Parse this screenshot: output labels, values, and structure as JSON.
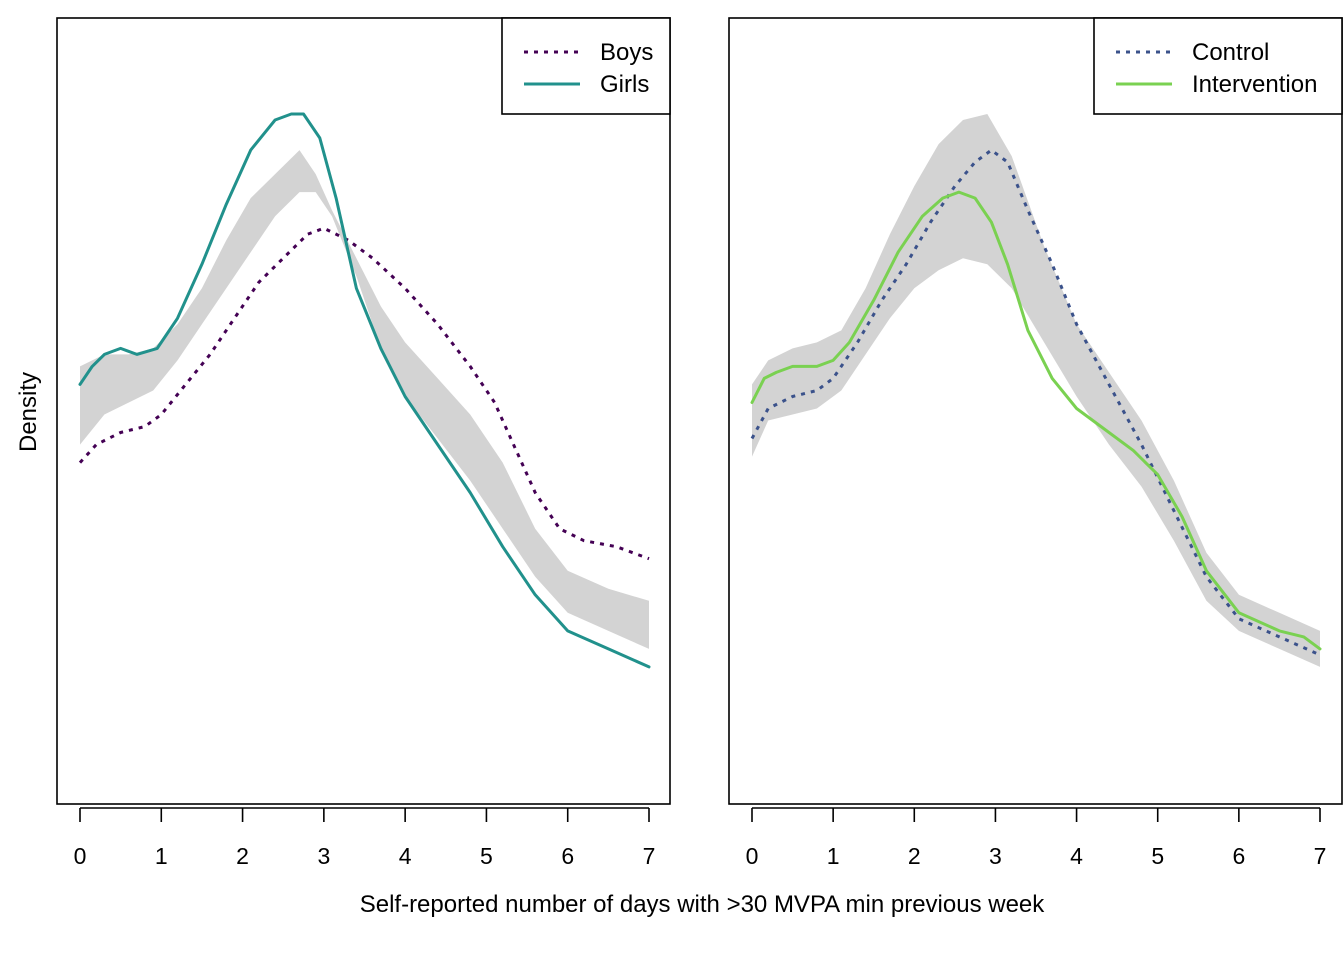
{
  "ylabel": "Density",
  "xlabel": "Self-reported number of days with >30 MVPA min previous week",
  "chart_data": [
    {
      "type": "line",
      "panel": "left",
      "xlim": [
        0,
        7
      ],
      "ylim": [
        0,
        1
      ],
      "xticks": [
        "0",
        "1",
        "2",
        "3",
        "4",
        "5",
        "6",
        "7"
      ],
      "y_ticks_shown": false,
      "legend_position": "top-right",
      "band": {
        "x": [
          0,
          0.3,
          0.6,
          0.9,
          1.2,
          1.5,
          1.8,
          2.1,
          2.4,
          2.7,
          2.9,
          3.1,
          3.4,
          3.7,
          4.0,
          4.4,
          4.8,
          5.2,
          5.6,
          6.0,
          6.5,
          7.0
        ],
        "lower": [
          0.45,
          0.5,
          0.52,
          0.54,
          0.59,
          0.65,
          0.71,
          0.77,
          0.83,
          0.87,
          0.87,
          0.83,
          0.73,
          0.61,
          0.53,
          0.46,
          0.39,
          0.31,
          0.23,
          0.17,
          0.14,
          0.11
        ],
        "upper": [
          0.58,
          0.6,
          0.6,
          0.61,
          0.65,
          0.71,
          0.79,
          0.86,
          0.9,
          0.94,
          0.9,
          0.84,
          0.76,
          0.68,
          0.62,
          0.56,
          0.5,
          0.42,
          0.31,
          0.24,
          0.21,
          0.19
        ]
      },
      "series": [
        {
          "name": "Boys",
          "color": "#440154",
          "dash": "dotted",
          "x": [
            0,
            0.2,
            0.5,
            0.8,
            1.0,
            1.3,
            1.6,
            1.9,
            2.2,
            2.5,
            2.8,
            3.0,
            3.3,
            3.6,
            4.0,
            4.4,
            4.8,
            5.1,
            5.3,
            5.6,
            5.9,
            6.2,
            6.6,
            7.0
          ],
          "values": [
            0.42,
            0.45,
            0.47,
            0.48,
            0.5,
            0.55,
            0.6,
            0.66,
            0.72,
            0.76,
            0.8,
            0.81,
            0.79,
            0.76,
            0.71,
            0.65,
            0.58,
            0.52,
            0.46,
            0.37,
            0.31,
            0.29,
            0.28,
            0.26
          ]
        },
        {
          "name": "Girls",
          "color": "#21918C",
          "dash": "solid",
          "x": [
            0,
            0.15,
            0.3,
            0.5,
            0.7,
            0.95,
            1.2,
            1.5,
            1.8,
            2.1,
            2.4,
            2.6,
            2.75,
            2.95,
            3.15,
            3.4,
            3.7,
            4.0,
            4.4,
            4.8,
            5.2,
            5.6,
            6.0,
            6.5,
            7.0
          ],
          "values": [
            0.55,
            0.58,
            0.6,
            0.61,
            0.6,
            0.61,
            0.66,
            0.75,
            0.85,
            0.94,
            0.99,
            1.0,
            1.0,
            0.96,
            0.86,
            0.71,
            0.61,
            0.53,
            0.45,
            0.37,
            0.28,
            0.2,
            0.14,
            0.11,
            0.08
          ]
        }
      ]
    },
    {
      "type": "line",
      "panel": "right",
      "xlim": [
        0,
        7
      ],
      "ylim": [
        0,
        1
      ],
      "xticks": [
        "0",
        "1",
        "2",
        "3",
        "4",
        "5",
        "6",
        "7"
      ],
      "y_ticks_shown": false,
      "legend_position": "top-right",
      "band": {
        "x": [
          0,
          0.2,
          0.5,
          0.8,
          1.1,
          1.4,
          1.7,
          2.0,
          2.3,
          2.6,
          2.9,
          3.2,
          3.6,
          4.0,
          4.4,
          4.8,
          5.2,
          5.6,
          6.0,
          6.5,
          7.0
        ],
        "lower": [
          0.43,
          0.49,
          0.5,
          0.51,
          0.54,
          0.6,
          0.66,
          0.71,
          0.74,
          0.76,
          0.75,
          0.71,
          0.62,
          0.53,
          0.45,
          0.38,
          0.29,
          0.19,
          0.14,
          0.11,
          0.08
        ],
        "upper": [
          0.55,
          0.59,
          0.61,
          0.62,
          0.64,
          0.71,
          0.8,
          0.88,
          0.95,
          0.99,
          1.0,
          0.93,
          0.78,
          0.65,
          0.57,
          0.49,
          0.39,
          0.27,
          0.2,
          0.17,
          0.14
        ]
      },
      "series": [
        {
          "name": "Control",
          "color": "#3B528B",
          "dash": "dotted",
          "x": [
            0,
            0.2,
            0.5,
            0.8,
            1.0,
            1.3,
            1.6,
            1.9,
            2.2,
            2.5,
            2.75,
            2.95,
            3.15,
            3.4,
            3.7,
            4.0,
            4.4,
            4.8,
            5.2,
            5.6,
            6.0,
            6.5,
            7.0
          ],
          "values": [
            0.46,
            0.51,
            0.53,
            0.54,
            0.56,
            0.62,
            0.69,
            0.75,
            0.82,
            0.88,
            0.92,
            0.94,
            0.92,
            0.84,
            0.75,
            0.65,
            0.55,
            0.45,
            0.34,
            0.23,
            0.16,
            0.13,
            0.1
          ]
        },
        {
          "name": "Intervention",
          "color": "#7AD151",
          "dash": "solid",
          "x": [
            0,
            0.15,
            0.3,
            0.5,
            0.8,
            1.0,
            1.2,
            1.5,
            1.8,
            2.1,
            2.35,
            2.55,
            2.75,
            2.95,
            3.15,
            3.4,
            3.7,
            4.0,
            4.3,
            4.7,
            5.0,
            5.3,
            5.6,
            6.0,
            6.5,
            6.8,
            7.0
          ],
          "values": [
            0.52,
            0.56,
            0.57,
            0.58,
            0.58,
            0.59,
            0.62,
            0.69,
            0.77,
            0.83,
            0.86,
            0.87,
            0.86,
            0.82,
            0.75,
            0.64,
            0.56,
            0.51,
            0.48,
            0.44,
            0.4,
            0.33,
            0.24,
            0.17,
            0.14,
            0.13,
            0.11
          ]
        }
      ]
    }
  ]
}
